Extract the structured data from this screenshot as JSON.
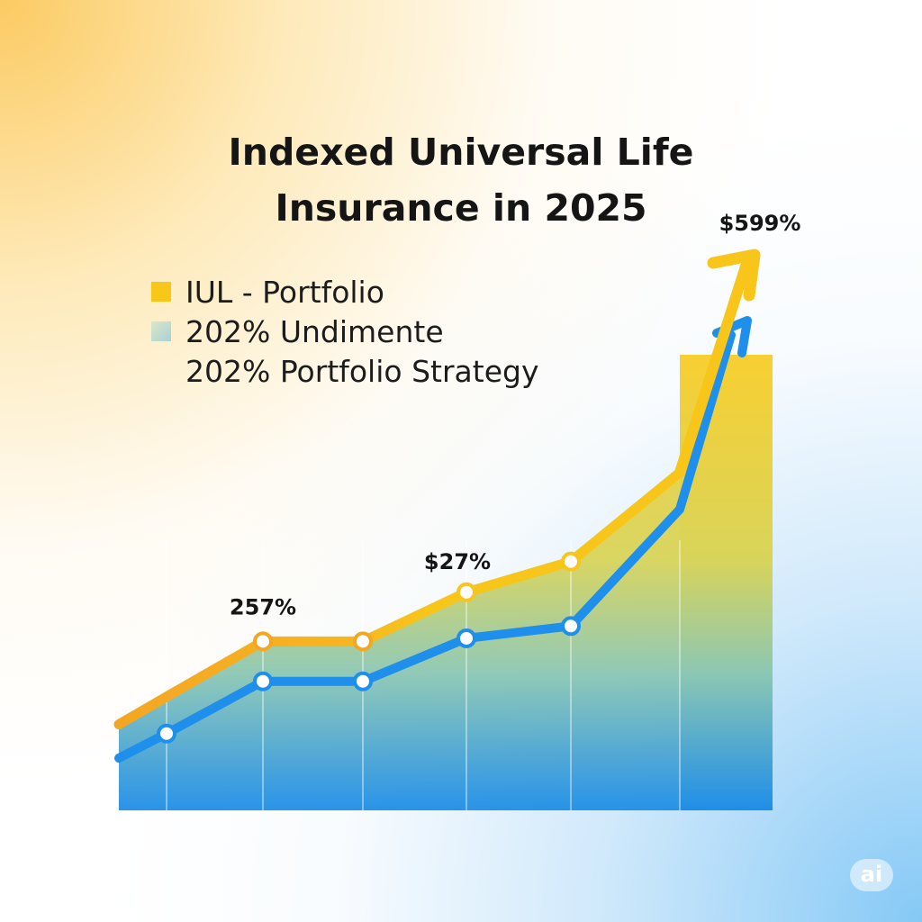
{
  "title_line1": "Indexed Universal Life",
  "title_line2": "Insurance in 2025",
  "legend": [
    {
      "label": "IUL - Portfolio",
      "color": "#f7c81a"
    },
    {
      "label": "202% Undimente",
      "color": "#c7dcc0"
    },
    {
      "label": "202% Portfolio Strategy",
      "color": null
    }
  ],
  "watermark": "ai",
  "colors": {
    "yellow_line": "#f8c51a",
    "orange_line": "#f4a623",
    "blue_line": "#1e8fea",
    "area_top": "#f8cf32",
    "area_bottom": "#1f8ee8"
  },
  "chart_data": {
    "type": "line",
    "title": "Indexed Universal Life Insurance in 2025",
    "x": [
      0,
      1,
      2,
      3,
      4,
      5,
      6,
      7
    ],
    "series": [
      {
        "name": "IUL - Portfolio",
        "values": [
          28,
          37,
          55,
          55,
          71,
          81,
          110,
          164
        ]
      },
      {
        "name": "202% Undimente",
        "values": [
          17,
          25,
          42,
          42,
          56,
          60,
          98,
          147
        ]
      }
    ],
    "ylim": [
      0,
      170
    ],
    "grid": "vertical",
    "annotations": [
      {
        "text": "257%",
        "series": 0,
        "index": 2
      },
      {
        "text": "$27%",
        "series": 0,
        "index": 4
      },
      {
        "text": "$599%",
        "series": 0,
        "index": 7
      }
    ],
    "legend_position": "top-left"
  }
}
